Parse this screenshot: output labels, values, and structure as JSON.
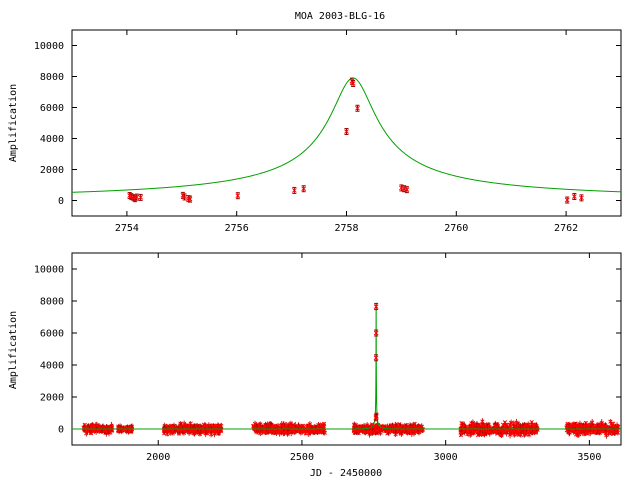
{
  "title": "MOA 2003-BLG-16",
  "colors": {
    "model": "#00a000",
    "data": "#ff0000",
    "errorbar": "#a00000",
    "axis": "#000000"
  },
  "chart_data": [
    {
      "type": "line",
      "title": "MOA 2003-BLG-16",
      "xlabel": "",
      "ylabel": "Amplification",
      "xlim": [
        2753.0,
        2763.0
      ],
      "ylim": [
        -1000,
        11000
      ],
      "xticks": [
        2754,
        2756,
        2758,
        2760,
        2762
      ],
      "yticks": [
        0,
        2000,
        4000,
        6000,
        8000,
        10000
      ],
      "model": {
        "t0": 2758.12,
        "u0": 0.0125,
        "tE": 32,
        "base": 0,
        "scale": 100
      },
      "series": [
        {
          "points": [
            [
              2754.05,
              320
            ],
            [
              2754.08,
              250
            ],
            [
              2754.12,
              180
            ],
            [
              2754.15,
              120
            ],
            [
              2754.18,
              220
            ],
            [
              2754.25,
              200
            ],
            [
              2755.02,
              330
            ],
            [
              2755.05,
              230
            ],
            [
              2755.12,
              120
            ],
            [
              2755.15,
              90
            ],
            [
              2756.02,
              310
            ],
            [
              2757.05,
              650
            ],
            [
              2757.22,
              760
            ],
            [
              2758.0,
              4450
            ],
            [
              2758.1,
              7700
            ],
            [
              2758.12,
              7550
            ],
            [
              2758.2,
              5950
            ],
            [
              2759.0,
              810
            ],
            [
              2759.05,
              760
            ],
            [
              2759.1,
              700
            ],
            [
              2762.02,
              30
            ],
            [
              2762.15,
              260
            ],
            [
              2762.28,
              170
            ]
          ]
        }
      ]
    },
    {
      "type": "line",
      "xlabel": "JD - 2450000",
      "ylabel": "Amplification",
      "xlim": [
        1700,
        3610
      ],
      "ylim": [
        -1000,
        11000
      ],
      "xticks": [
        2000,
        2500,
        3000,
        3500
      ],
      "yticks": [
        0,
        2000,
        4000,
        6000,
        8000,
        10000
      ],
      "model": {
        "t0": 2758.12,
        "u0": 0.0125,
        "tE": 32,
        "base": 0,
        "scale": 100
      },
      "peak_points": [
        [
          2757.9,
          4450
        ],
        [
          2758.1,
          7650
        ],
        [
          2758.2,
          6000
        ],
        [
          2759.0,
          800
        ],
        [
          2757.2,
          700
        ]
      ],
      "season_blocks": [
        [
          1740,
          1840,
          180
        ],
        [
          1860,
          1910,
          120
        ],
        [
          2020,
          2220,
          200
        ],
        [
          2330,
          2580,
          200
        ],
        [
          2680,
          2920,
          200
        ],
        [
          3050,
          3320,
          260
        ],
        [
          3420,
          3600,
          250
        ]
      ]
    }
  ]
}
